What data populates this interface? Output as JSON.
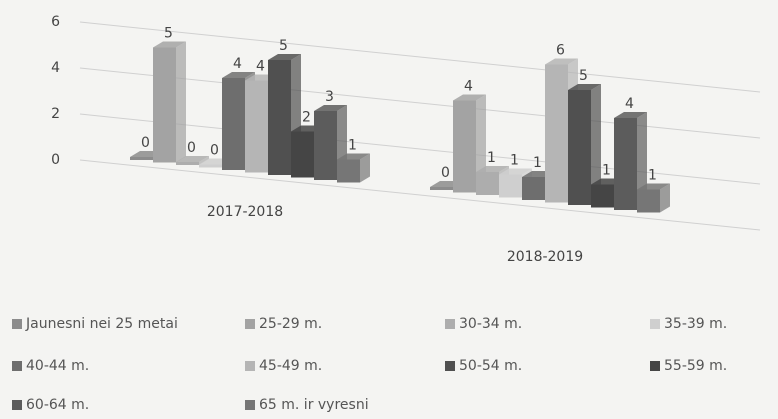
{
  "chart_data": {
    "type": "bar3d",
    "categories": [
      "2017-2018",
      "2018-2019"
    ],
    "series": [
      {
        "name": "Jaunesni nei 25 metai",
        "color": "#8c8c8c",
        "values": [
          0,
          0
        ]
      },
      {
        "name": "25-29 m.",
        "color": "#a3a3a3",
        "values": [
          5,
          4
        ]
      },
      {
        "name": "30-34 m.",
        "color": "#adadad",
        "values": [
          0,
          1
        ]
      },
      {
        "name": "35-39 m.",
        "color": "#cfcfcf",
        "values": [
          0,
          1
        ]
      },
      {
        "name": "40-44 m.",
        "color": "#6e6e6e",
        "values": [
          4,
          1
        ]
      },
      {
        "name": "45-49 m.",
        "color": "#b5b5b5",
        "values": [
          4,
          6
        ]
      },
      {
        "name": "50-54 m.",
        "color": "#505050",
        "values": [
          5,
          5
        ]
      },
      {
        "name": "55-59 m.",
        "color": "#454545",
        "values": [
          2,
          1
        ]
      },
      {
        "name": "60-64 m.",
        "color": "#5c5c5c",
        "values": [
          3,
          4
        ]
      },
      {
        "name": "65 m. ir vyresni",
        "color": "#767676",
        "values": [
          1,
          1
        ]
      }
    ],
    "ylim": [
      0,
      6
    ],
    "yticks": [
      0,
      2,
      4,
      6
    ],
    "grid": true
  }
}
